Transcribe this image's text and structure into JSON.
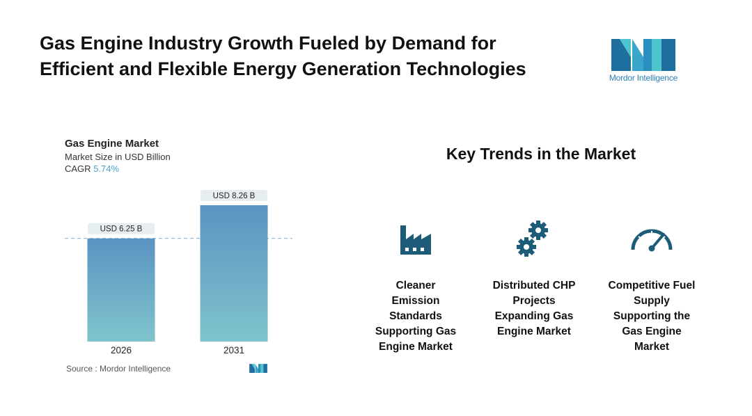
{
  "header": {
    "title_line1": "Gas Engine Industry Growth Fueled by Demand for",
    "title_line2": "Efficient and Flexible Energy Generation Technologies"
  },
  "logo": {
    "text": "Mordor Intelligence",
    "icon": "mordor-intelligence-logo"
  },
  "chart": {
    "title": "Gas Engine Market",
    "subtitle": "Market Size in USD Billion",
    "cagr_label": "CAGR",
    "cagr_value": "5.74%"
  },
  "chart_data": {
    "type": "bar",
    "title": "Gas Engine Market",
    "subtitle": "Market Size in USD Billion",
    "categories": [
      "2026",
      "2031"
    ],
    "values": [
      6.25,
      8.26
    ],
    "data_labels": [
      "USD 6.25 B",
      "USD 8.26 B"
    ],
    "ylabel": "Market Size in USD Billion",
    "ylim": [
      0,
      8.26
    ],
    "grid": false,
    "reference_line": "dashed line at first bar value",
    "bar_gradient": [
      "#5b93c2",
      "#7fc4cc"
    ]
  },
  "source": {
    "text": "Source :  Mordor Intelligence"
  },
  "trends": {
    "title": "Key Trends in the Market",
    "items": [
      {
        "icon": "factory-icon",
        "label_lines": [
          "Cleaner",
          "Emission",
          "Standards",
          "Supporting Gas",
          "Engine Market"
        ]
      },
      {
        "icon": "gears-icon",
        "label_lines": [
          "Distributed CHP",
          "Projects",
          "Expanding Gas",
          "Engine Market"
        ]
      },
      {
        "icon": "speedometer-icon",
        "label_lines": [
          "Competitive Fuel",
          "Supply",
          "Supporting the",
          "Gas Engine",
          "Market"
        ]
      }
    ]
  },
  "colors": {
    "accent": "#1d5c78",
    "cagr": "#4fa0c6",
    "bar_top": "#5b93c2",
    "bar_bottom": "#7fc4cc"
  }
}
